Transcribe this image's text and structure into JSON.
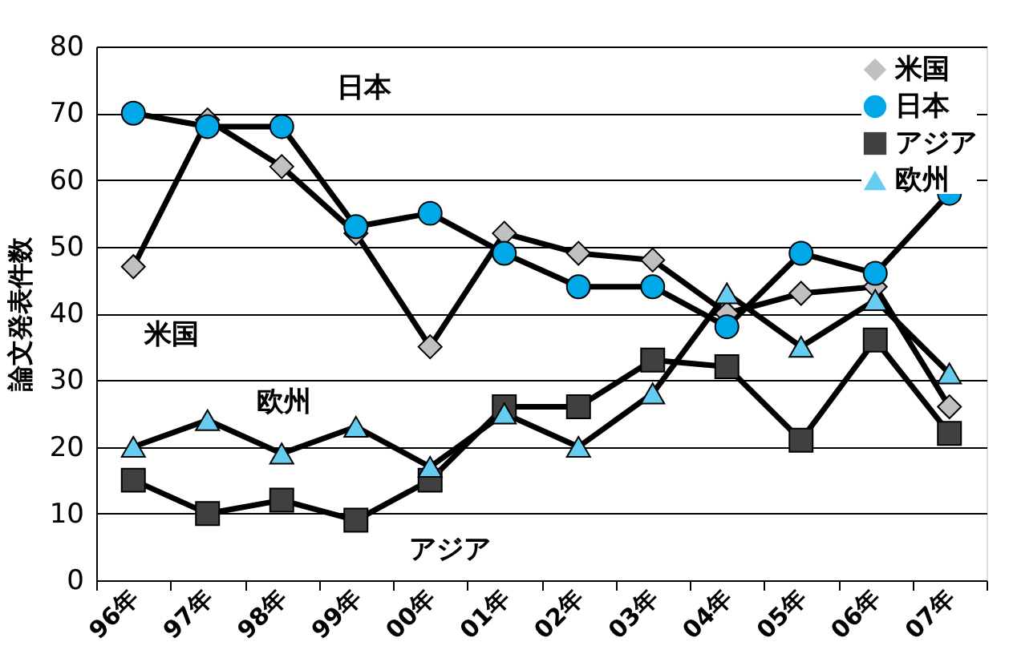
{
  "chart_data": {
    "type": "line",
    "ylabel": "論文発表件数",
    "categories": [
      "96年",
      "97年",
      "98年",
      "99年",
      "00年",
      "01年",
      "02年",
      "03年",
      "04年",
      "05年",
      "06年",
      "07年"
    ],
    "series": [
      {
        "name": "米国",
        "color": "#c0c0c0",
        "marker": "diamond",
        "values": [
          47,
          69,
          62,
          52,
          35,
          52,
          49,
          48,
          40,
          43,
          44,
          26
        ]
      },
      {
        "name": "日本",
        "color": "#00a8e8",
        "marker": "circle",
        "values": [
          70,
          68,
          68,
          53,
          55,
          49,
          44,
          44,
          38,
          49,
          46,
          58
        ]
      },
      {
        "name": "アジア",
        "color": "#404040",
        "marker": "square",
        "values": [
          15,
          10,
          12,
          9,
          15,
          26,
          26,
          33,
          32,
          21,
          36,
          22
        ]
      },
      {
        "name": "欧州",
        "color": "#66ccf0",
        "marker": "triangle",
        "values": [
          20,
          24,
          19,
          23,
          17,
          25,
          20,
          28,
          43,
          35,
          42,
          31
        ]
      }
    ],
    "annotations": [
      "日本",
      "米国",
      "欧州",
      "アジア"
    ],
    "ylim": [
      0,
      80
    ],
    "yticks": [
      0,
      10,
      20,
      30,
      40,
      50,
      60,
      70,
      80
    ],
    "grid": "y",
    "legend": "top right",
    "line_style": "solid"
  }
}
